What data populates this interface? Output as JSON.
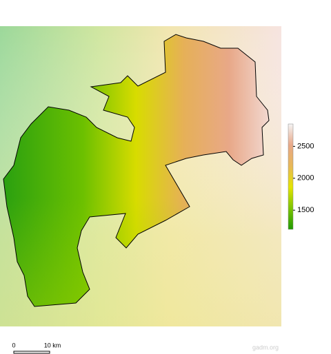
{
  "map": {
    "colorbar": {
      "lim": [
        1200,
        2850
      ],
      "ticks": [
        1500,
        2000,
        2500
      ],
      "colors": [
        "#1f9a00",
        "#7cc400",
        "#e4e400",
        "#e8b858",
        "#e8a888",
        "#f4f4f4"
      ]
    },
    "scale_bar": {
      "start": "0",
      "end": "10 km"
    },
    "credit": "gadm.org"
  }
}
